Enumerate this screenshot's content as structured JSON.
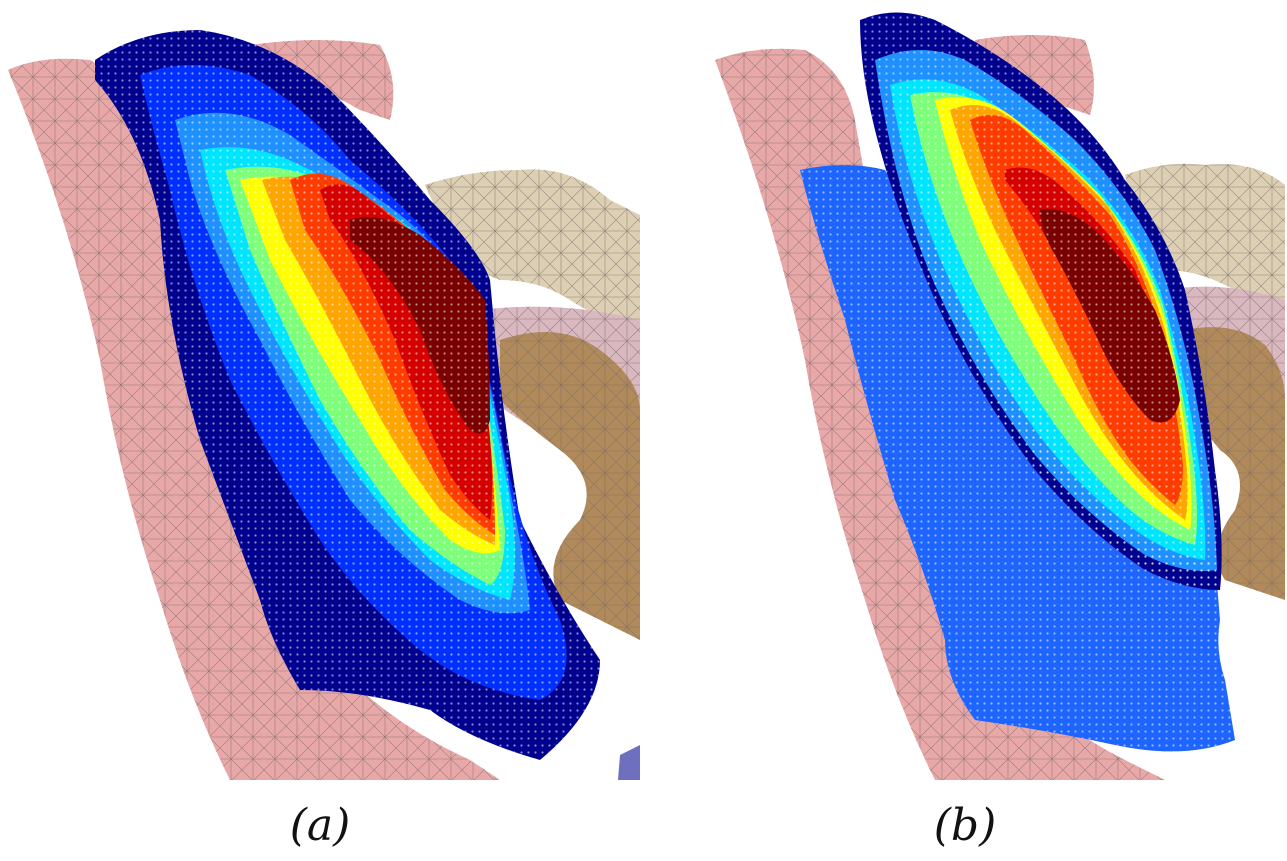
{
  "figure": {
    "panels": [
      {
        "id": "a",
        "caption": "(a)"
      },
      {
        "id": "b",
        "caption": "(b)"
      }
    ]
  },
  "colors": {
    "tissue_pink": "#e8a8a8",
    "bone_tan": "#dccfb3",
    "bone_brown": "#b08a5a",
    "bone_mauve": "#d9b8c0",
    "mesh_line": "#7a6868",
    "jet_scale": [
      "#00008f",
      "#0030ff",
      "#1e90ff",
      "#00e5ff",
      "#7dff7a",
      "#ffff00",
      "#ffa500",
      "#ff3c00",
      "#d40000",
      "#7a0000"
    ]
  }
}
